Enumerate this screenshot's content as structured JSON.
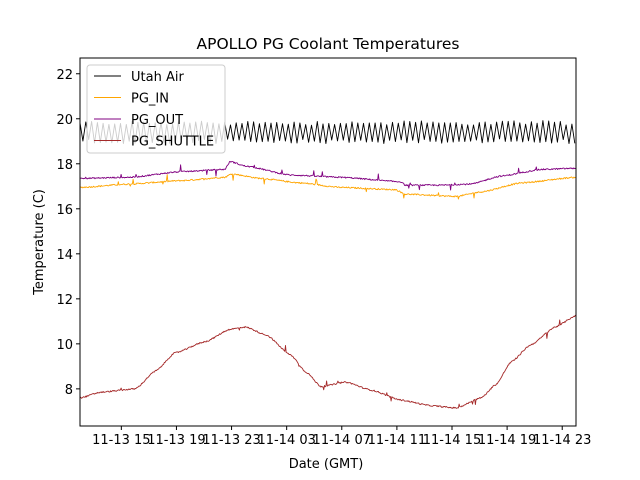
{
  "chart_data": {
    "type": "line",
    "title": "APOLLO PG Coolant Temperatures",
    "xlabel": "Date (GMT)",
    "ylabel": "Temperature (C)",
    "x_units": "hours since 11-13 00:00 GMT",
    "xlim": [
      12,
      48
    ],
    "ylim": [
      6.35,
      22.7
    ],
    "x_ticks": [
      15,
      19,
      23,
      27,
      31,
      35,
      39,
      43,
      47
    ],
    "x_tick_labels": [
      "11-13 15",
      "11-13 19",
      "11-13 23",
      "11-14 03",
      "11-14 07",
      "11-14 11",
      "11-14 15",
      "11-14 19",
      "11-14 23"
    ],
    "y_ticks": [
      8,
      10,
      12,
      14,
      16,
      18,
      20,
      22
    ],
    "y_tick_labels": [
      "8",
      "10",
      "12",
      "14",
      "16",
      "18",
      "20",
      "22"
    ],
    "grid": false,
    "legend_position": "top-left",
    "series": [
      {
        "name": "Utah Air",
        "color": "#000000",
        "pattern": "oscillating",
        "mean": 19.4,
        "amplitude": 0.45,
        "period_hours": 0.42,
        "x": [
          12,
          48
        ],
        "y": [
          19.4,
          19.4
        ]
      },
      {
        "name": "PG_IN",
        "color": "#ffa500",
        "x": [
          12,
          15.6,
          19.3,
          22.5,
          23.0,
          25.1,
          28.0,
          30.9,
          34.9,
          35.6,
          39.3,
          41.1,
          44.0,
          48.0
        ],
        "y": [
          16.95,
          17.1,
          17.25,
          17.4,
          17.55,
          17.35,
          17.15,
          16.95,
          16.85,
          16.65,
          16.55,
          16.75,
          17.15,
          17.4
        ]
      },
      {
        "name": "PG_OUT",
        "color": "#800080",
        "x": [
          12,
          15.6,
          19.3,
          22.5,
          22.9,
          24.0,
          27.3,
          30.9,
          35.3,
          35.6,
          38.2,
          40.4,
          42.5,
          45.5,
          48.0
        ],
        "y": [
          17.35,
          17.4,
          17.65,
          17.75,
          18.1,
          17.9,
          17.5,
          17.4,
          17.2,
          17.05,
          17.05,
          17.1,
          17.45,
          17.75,
          17.8
        ]
      },
      {
        "name": "PG_SHUTTLE",
        "color": "#a52a2a",
        "x": [
          12,
          13.5,
          16.0,
          17.5,
          18.9,
          21.1,
          22.9,
          24.0,
          25.5,
          27.3,
          28.4,
          29.5,
          31.3,
          33.1,
          35.3,
          37.5,
          39.3,
          41.1,
          42.2,
          43.3,
          44.7,
          46.5,
          48.0
        ],
        "y": [
          7.6,
          7.85,
          8.0,
          8.8,
          9.6,
          10.1,
          10.65,
          10.75,
          10.4,
          9.5,
          8.75,
          8.1,
          8.3,
          7.95,
          7.5,
          7.25,
          7.15,
          7.6,
          8.2,
          9.2,
          9.95,
          10.75,
          11.25
        ]
      }
    ]
  }
}
